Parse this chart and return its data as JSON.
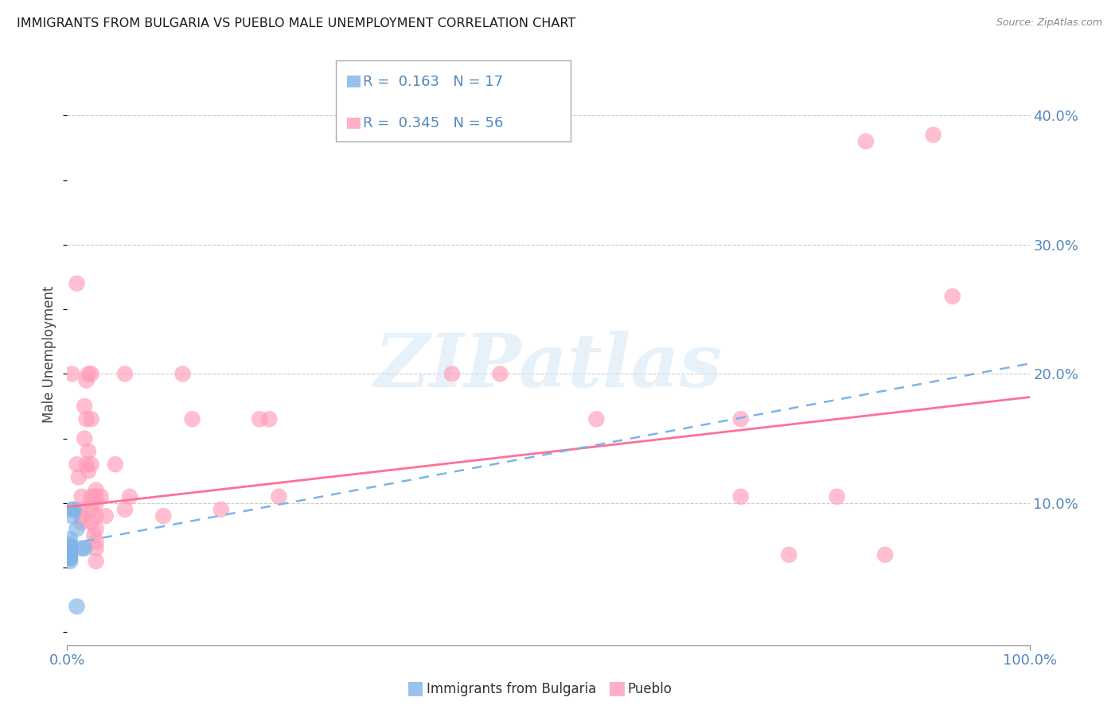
{
  "title": "IMMIGRANTS FROM BULGARIA VS PUEBLO MALE UNEMPLOYMENT CORRELATION CHART",
  "source": "Source: ZipAtlas.com",
  "ylabel": "Male Unemployment",
  "x_lim": [
    0.0,
    1.0
  ],
  "y_lim": [
    -0.01,
    0.44
  ],
  "y_ticks": [
    0.1,
    0.2,
    0.3,
    0.4
  ],
  "y_tick_labels": [
    "10.0%",
    "20.0%",
    "30.0%",
    "40.0%"
  ],
  "x_tick_left": "0.0%",
  "x_tick_right": "100.0%",
  "legend_r_blue": "R =  0.163",
  "legend_n_blue": "N = 17",
  "legend_r_pink": "R =  0.345",
  "legend_n_pink": "N = 56",
  "blue_color": "#7EB3E8",
  "pink_color": "#FF9DB8",
  "trendline_blue_color": "#7EB3E8",
  "trendline_pink_color": "#FF7096",
  "blue_points": [
    [
      0.003,
      0.065
    ],
    [
      0.003,
      0.072
    ],
    [
      0.003,
      0.068
    ],
    [
      0.003,
      0.062
    ],
    [
      0.003,
      0.058
    ],
    [
      0.003,
      0.055
    ],
    [
      0.003,
      0.06
    ],
    [
      0.003,
      0.063
    ],
    [
      0.003,
      0.057
    ],
    [
      0.003,
      0.066
    ],
    [
      0.005,
      0.095
    ],
    [
      0.005,
      0.09
    ],
    [
      0.007,
      0.095
    ],
    [
      0.01,
      0.08
    ],
    [
      0.01,
      0.02
    ],
    [
      0.015,
      0.065
    ],
    [
      0.018,
      0.065
    ]
  ],
  "pink_points": [
    [
      0.005,
      0.2
    ],
    [
      0.01,
      0.27
    ],
    [
      0.01,
      0.13
    ],
    [
      0.012,
      0.12
    ],
    [
      0.015,
      0.105
    ],
    [
      0.015,
      0.095
    ],
    [
      0.015,
      0.09
    ],
    [
      0.015,
      0.085
    ],
    [
      0.018,
      0.175
    ],
    [
      0.018,
      0.15
    ],
    [
      0.02,
      0.195
    ],
    [
      0.02,
      0.165
    ],
    [
      0.02,
      0.13
    ],
    [
      0.022,
      0.2
    ],
    [
      0.022,
      0.14
    ],
    [
      0.022,
      0.125
    ],
    [
      0.025,
      0.2
    ],
    [
      0.025,
      0.165
    ],
    [
      0.025,
      0.13
    ],
    [
      0.025,
      0.105
    ],
    [
      0.025,
      0.095
    ],
    [
      0.025,
      0.085
    ],
    [
      0.028,
      0.105
    ],
    [
      0.028,
      0.075
    ],
    [
      0.03,
      0.11
    ],
    [
      0.03,
      0.105
    ],
    [
      0.03,
      0.1
    ],
    [
      0.03,
      0.09
    ],
    [
      0.03,
      0.08
    ],
    [
      0.03,
      0.07
    ],
    [
      0.03,
      0.065
    ],
    [
      0.03,
      0.055
    ],
    [
      0.035,
      0.105
    ],
    [
      0.04,
      0.09
    ],
    [
      0.05,
      0.13
    ],
    [
      0.06,
      0.2
    ],
    [
      0.06,
      0.095
    ],
    [
      0.065,
      0.105
    ],
    [
      0.1,
      0.09
    ],
    [
      0.12,
      0.2
    ],
    [
      0.13,
      0.165
    ],
    [
      0.16,
      0.095
    ],
    [
      0.2,
      0.165
    ],
    [
      0.21,
      0.165
    ],
    [
      0.22,
      0.105
    ],
    [
      0.4,
      0.2
    ],
    [
      0.45,
      0.2
    ],
    [
      0.55,
      0.165
    ],
    [
      0.7,
      0.165
    ],
    [
      0.7,
      0.105
    ],
    [
      0.75,
      0.06
    ],
    [
      0.8,
      0.105
    ],
    [
      0.83,
      0.38
    ],
    [
      0.85,
      0.06
    ],
    [
      0.9,
      0.385
    ],
    [
      0.92,
      0.26
    ]
  ],
  "blue_trend": [
    0.068,
    0.14
  ],
  "pink_trend": [
    0.097,
    0.085
  ],
  "watermark_text": "ZIPatlas",
  "background_color": "#FFFFFF",
  "grid_color": "#CCCCCC",
  "title_fontsize": 11.5,
  "tick_label_color": "#5588BB",
  "axis_color": "#888888"
}
